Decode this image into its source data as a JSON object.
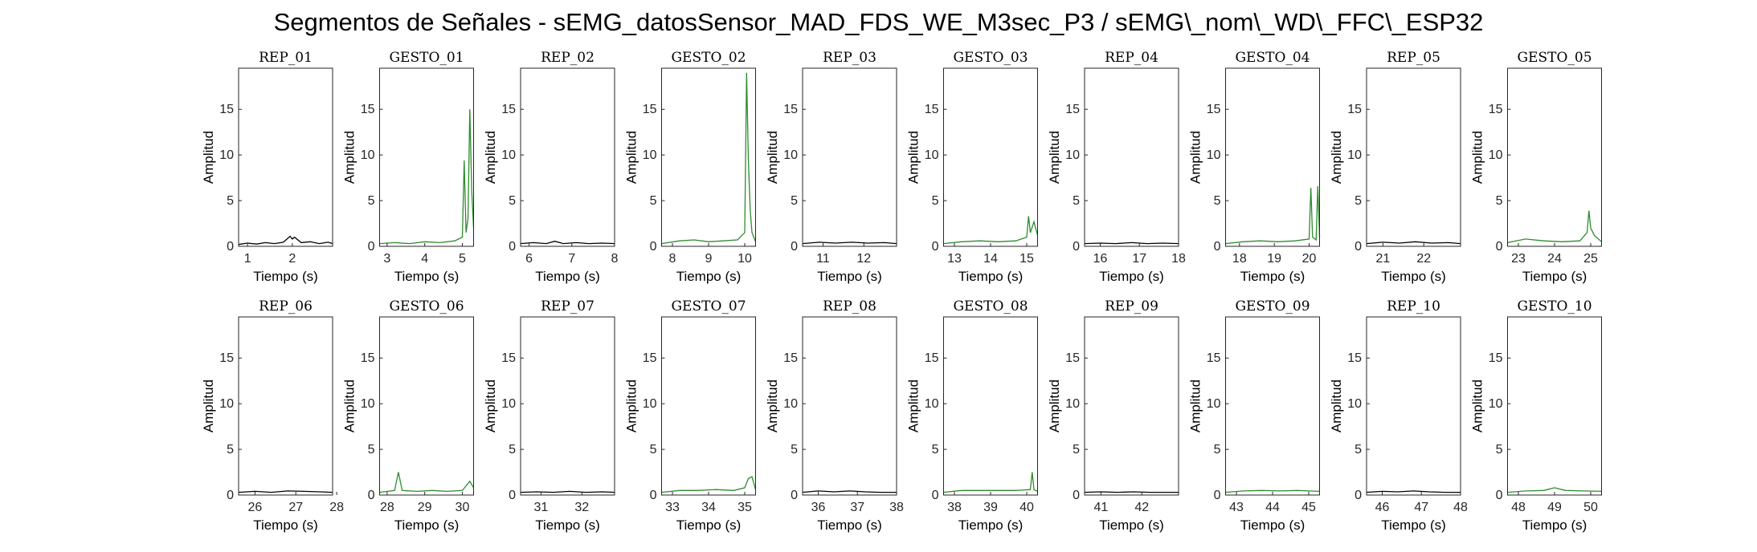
{
  "figure_title": "Segmentos de Señales - sEMG_datosSensor_MAD_FDS_WE_M3sec_P3 / sEMG\\_nom\\_WD\\_FFC\\_ESP32",
  "colors": {
    "rep": "#000000",
    "gesto": "#2e8b2e",
    "axis": "#262626"
  },
  "chart_data": [
    {
      "type": "line",
      "title": "REP_01",
      "xlabel": "Tiempo (s)",
      "ylabel": "Amplitud",
      "xticks": [
        1,
        2
      ],
      "yticks": [
        0,
        5,
        10,
        15
      ],
      "xlim": [
        0.8,
        2.9
      ],
      "ylim": [
        0,
        19.5
      ],
      "grid": false,
      "series": [
        {
          "color": "#000000",
          "x": [
            0.8,
            1.0,
            1.2,
            1.4,
            1.6,
            1.8,
            1.95,
            2.0,
            2.05,
            2.2,
            2.4,
            2.6,
            2.8,
            2.9
          ],
          "y": [
            0.2,
            0.35,
            0.25,
            0.4,
            0.3,
            0.45,
            1.1,
            0.8,
            1.0,
            0.4,
            0.5,
            0.3,
            0.45,
            0.3
          ]
        }
      ]
    },
    {
      "type": "line",
      "title": "GESTO_01",
      "xlabel": "Tiempo (s)",
      "ylabel": "Amplitud",
      "xticks": [
        3,
        4,
        5
      ],
      "yticks": [
        0,
        5,
        10,
        15
      ],
      "xlim": [
        2.8,
        5.3
      ],
      "ylim": [
        0,
        19.5
      ],
      "grid": false,
      "series": [
        {
          "color": "#2e8b2e",
          "x": [
            2.8,
            3.2,
            3.6,
            4.0,
            4.4,
            4.8,
            5.0,
            5.05,
            5.1,
            5.15,
            5.2,
            5.25,
            5.3
          ],
          "y": [
            0.3,
            0.4,
            0.3,
            0.5,
            0.4,
            0.6,
            1.0,
            9.4,
            1.5,
            3.0,
            15.0,
            6.0,
            2.0
          ]
        }
      ]
    },
    {
      "type": "line",
      "title": "REP_02",
      "xlabel": "Tiempo (s)",
      "ylabel": "Amplitud",
      "xticks": [
        6,
        7,
        8
      ],
      "yticks": [
        0,
        5,
        10,
        15
      ],
      "xlim": [
        5.8,
        8.0
      ],
      "ylim": [
        0,
        19.5
      ],
      "grid": false,
      "series": [
        {
          "color": "#000000",
          "x": [
            5.8,
            6.1,
            6.4,
            6.6,
            6.8,
            7.1,
            7.4,
            7.7,
            8.0
          ],
          "y": [
            0.3,
            0.4,
            0.3,
            0.55,
            0.3,
            0.4,
            0.3,
            0.35,
            0.3
          ]
        }
      ]
    },
    {
      "type": "line",
      "title": "GESTO_02",
      "xlabel": "Tiempo (s)",
      "ylabel": "Amplitud",
      "xticks": [
        8,
        9,
        10
      ],
      "yticks": [
        0,
        5,
        10,
        15
      ],
      "xlim": [
        7.7,
        10.3
      ],
      "ylim": [
        0,
        19.5
      ],
      "grid": false,
      "series": [
        {
          "color": "#2e8b2e",
          "x": [
            7.7,
            8.2,
            8.6,
            9.0,
            9.4,
            9.8,
            10.0,
            10.05,
            10.1,
            10.15,
            10.2,
            10.3
          ],
          "y": [
            0.3,
            0.6,
            0.7,
            0.5,
            0.6,
            0.7,
            1.5,
            19.0,
            9.5,
            4.0,
            1.5,
            0.5
          ]
        }
      ]
    },
    {
      "type": "line",
      "title": "REP_03",
      "xlabel": "Tiempo (s)",
      "ylabel": "Amplitud",
      "xticks": [
        11,
        12
      ],
      "yticks": [
        0,
        5,
        10,
        15
      ],
      "xlim": [
        10.5,
        12.8
      ],
      "ylim": [
        0,
        19.5
      ],
      "grid": false,
      "series": [
        {
          "color": "#000000",
          "x": [
            10.5,
            10.9,
            11.3,
            11.7,
            12.1,
            12.5,
            12.8
          ],
          "y": [
            0.3,
            0.45,
            0.35,
            0.45,
            0.35,
            0.4,
            0.3
          ]
        }
      ]
    },
    {
      "type": "line",
      "title": "GESTO_03",
      "xlabel": "Tiempo (s)",
      "ylabel": "Amplitud",
      "xticks": [
        13,
        14,
        15
      ],
      "yticks": [
        0,
        5,
        10,
        15
      ],
      "xlim": [
        12.7,
        15.3
      ],
      "ylim": [
        0,
        19.5
      ],
      "grid": false,
      "series": [
        {
          "color": "#2e8b2e",
          "x": [
            12.7,
            13.2,
            13.7,
            14.2,
            14.7,
            15.0,
            15.05,
            15.1,
            15.2,
            15.3
          ],
          "y": [
            0.3,
            0.5,
            0.6,
            0.5,
            0.6,
            1.0,
            3.3,
            1.5,
            2.7,
            1.2
          ]
        }
      ]
    },
    {
      "type": "line",
      "title": "REP_04",
      "xlabel": "Tiempo (s)",
      "ylabel": "Amplitud",
      "xticks": [
        16,
        17,
        18
      ],
      "yticks": [
        0,
        5,
        10,
        15
      ],
      "xlim": [
        15.6,
        18.0
      ],
      "ylim": [
        0,
        19.5
      ],
      "grid": false,
      "series": [
        {
          "color": "#000000",
          "x": [
            15.6,
            16.0,
            16.4,
            16.8,
            17.2,
            17.6,
            18.0
          ],
          "y": [
            0.3,
            0.35,
            0.3,
            0.4,
            0.3,
            0.35,
            0.3
          ]
        }
      ]
    },
    {
      "type": "line",
      "title": "GESTO_04",
      "xlabel": "Tiempo (s)",
      "ylabel": "Amplitud",
      "xticks": [
        18,
        19,
        20
      ],
      "yticks": [
        0,
        5,
        10,
        15
      ],
      "xlim": [
        17.6,
        20.3
      ],
      "ylim": [
        0,
        19.5
      ],
      "grid": false,
      "series": [
        {
          "color": "#2e8b2e",
          "x": [
            17.6,
            18.1,
            18.6,
            19.1,
            19.6,
            20.0,
            20.05,
            20.1,
            20.2,
            20.25,
            20.3
          ],
          "y": [
            0.3,
            0.5,
            0.6,
            0.5,
            0.6,
            0.8,
            6.4,
            1.0,
            0.7,
            6.6,
            1.0
          ]
        }
      ]
    },
    {
      "type": "line",
      "title": "REP_05",
      "xlabel": "Tiempo (s)",
      "ylabel": "Amplitud",
      "xticks": [
        21,
        22
      ],
      "yticks": [
        0,
        5,
        10,
        15
      ],
      "xlim": [
        20.6,
        22.9
      ],
      "ylim": [
        0,
        19.5
      ],
      "grid": false,
      "series": [
        {
          "color": "#000000",
          "x": [
            20.6,
            21.0,
            21.4,
            21.8,
            22.2,
            22.6,
            22.9
          ],
          "y": [
            0.3,
            0.45,
            0.35,
            0.5,
            0.35,
            0.4,
            0.3
          ]
        }
      ]
    },
    {
      "type": "line",
      "title": "GESTO_05",
      "xlabel": "Tiempo (s)",
      "ylabel": "Amplitud",
      "xticks": [
        23,
        24,
        25
      ],
      "yticks": [
        0,
        5,
        10,
        15
      ],
      "xlim": [
        22.7,
        25.3
      ],
      "ylim": [
        0,
        19.5
      ],
      "grid": false,
      "series": [
        {
          "color": "#2e8b2e",
          "x": [
            22.7,
            23.2,
            23.7,
            24.2,
            24.7,
            24.9,
            24.95,
            25.0,
            25.1,
            25.3
          ],
          "y": [
            0.4,
            0.8,
            0.6,
            0.5,
            0.6,
            1.5,
            3.9,
            2.0,
            1.2,
            0.5
          ]
        }
      ]
    },
    {
      "type": "line",
      "title": "REP_06",
      "xlabel": "Tiempo (s)",
      "ylabel": "Amplitud",
      "xticks": [
        26,
        27,
        28
      ],
      "yticks": [
        0,
        5,
        10,
        15
      ],
      "xlim": [
        25.6,
        27.9
      ],
      "ylim": [
        0,
        19.5
      ],
      "grid": false,
      "series": [
        {
          "color": "#000000",
          "x": [
            25.6,
            26.0,
            26.4,
            26.8,
            27.2,
            27.6,
            27.9
          ],
          "y": [
            0.3,
            0.4,
            0.3,
            0.45,
            0.4,
            0.35,
            0.3
          ]
        }
      ]
    },
    {
      "type": "line",
      "title": "GESTO_06",
      "xlabel": "Tiempo (s)",
      "ylabel": "Amplitud",
      "xticks": [
        28,
        29,
        30
      ],
      "yticks": [
        0,
        5,
        10,
        15
      ],
      "xlim": [
        27.8,
        30.3
      ],
      "ylim": [
        0,
        19.5
      ],
      "grid": false,
      "series": [
        {
          "color": "#2e8b2e",
          "x": [
            27.8,
            28.2,
            28.3,
            28.4,
            28.8,
            29.2,
            29.6,
            30.0,
            30.2,
            30.3
          ],
          "y": [
            0.3,
            0.5,
            2.5,
            0.5,
            0.4,
            0.5,
            0.4,
            0.5,
            1.5,
            0.8
          ]
        }
      ]
    },
    {
      "type": "line",
      "title": "REP_07",
      "xlabel": "Tiempo (s)",
      "ylabel": "Amplitud",
      "xticks": [
        31,
        32
      ],
      "yticks": [
        0,
        5,
        10,
        15
      ],
      "xlim": [
        30.5,
        32.8
      ],
      "ylim": [
        0,
        19.5
      ],
      "grid": false,
      "series": [
        {
          "color": "#000000",
          "x": [
            30.5,
            30.9,
            31.3,
            31.7,
            32.1,
            32.5,
            32.8
          ],
          "y": [
            0.3,
            0.35,
            0.3,
            0.4,
            0.3,
            0.35,
            0.3
          ]
        }
      ]
    },
    {
      "type": "line",
      "title": "GESTO_07",
      "xlabel": "Tiempo (s)",
      "ylabel": "Amplitud",
      "xticks": [
        33,
        34,
        35
      ],
      "yticks": [
        0,
        5,
        10,
        15
      ],
      "xlim": [
        32.7,
        35.3
      ],
      "ylim": [
        0,
        19.5
      ],
      "grid": false,
      "series": [
        {
          "color": "#2e8b2e",
          "x": [
            32.7,
            33.2,
            33.7,
            34.2,
            34.7,
            35.0,
            35.1,
            35.2,
            35.3
          ],
          "y": [
            0.3,
            0.5,
            0.5,
            0.6,
            0.5,
            0.8,
            1.8,
            2.0,
            0.6
          ]
        }
      ]
    },
    {
      "type": "line",
      "title": "REP_08",
      "xlabel": "Tiempo (s)",
      "ylabel": "Amplitud",
      "xticks": [
        36,
        37,
        38
      ],
      "yticks": [
        0,
        5,
        10,
        15
      ],
      "xlim": [
        35.6,
        38.0
      ],
      "ylim": [
        0,
        19.5
      ],
      "grid": false,
      "series": [
        {
          "color": "#000000",
          "x": [
            35.6,
            36.0,
            36.4,
            36.8,
            37.2,
            37.6,
            38.0
          ],
          "y": [
            0.3,
            0.45,
            0.35,
            0.45,
            0.35,
            0.3,
            0.3
          ]
        }
      ]
    },
    {
      "type": "line",
      "title": "GESTO_08",
      "xlabel": "Tiempo (s)",
      "ylabel": "Amplitud",
      "xticks": [
        38,
        39,
        40
      ],
      "yticks": [
        0,
        5,
        10,
        15
      ],
      "xlim": [
        37.7,
        40.3
      ],
      "ylim": [
        0,
        19.5
      ],
      "grid": false,
      "series": [
        {
          "color": "#2e8b2e",
          "x": [
            37.7,
            38.2,
            38.7,
            39.2,
            39.7,
            40.1,
            40.15,
            40.2,
            40.3
          ],
          "y": [
            0.3,
            0.5,
            0.5,
            0.5,
            0.5,
            0.6,
            2.5,
            0.6,
            0.4
          ]
        }
      ]
    },
    {
      "type": "line",
      "title": "REP_09",
      "xlabel": "Tiempo (s)",
      "ylabel": "Amplitud",
      "xticks": [
        41,
        42
      ],
      "yticks": [
        0,
        5,
        10,
        15
      ],
      "xlim": [
        40.6,
        42.9
      ],
      "ylim": [
        0,
        19.5
      ],
      "grid": false,
      "series": [
        {
          "color": "#000000",
          "x": [
            40.6,
            41.0,
            41.4,
            41.8,
            42.2,
            42.6,
            42.9
          ],
          "y": [
            0.3,
            0.35,
            0.3,
            0.35,
            0.3,
            0.3,
            0.3
          ]
        }
      ]
    },
    {
      "type": "line",
      "title": "GESTO_09",
      "xlabel": "Tiempo (s)",
      "ylabel": "Amplitud",
      "xticks": [
        43,
        44,
        45
      ],
      "yticks": [
        0,
        5,
        10,
        15
      ],
      "xlim": [
        42.7,
        45.3
      ],
      "ylim": [
        0,
        19.5
      ],
      "grid": false,
      "series": [
        {
          "color": "#2e8b2e",
          "x": [
            42.7,
            43.2,
            43.7,
            44.2,
            44.7,
            45.0,
            45.3
          ],
          "y": [
            0.3,
            0.45,
            0.5,
            0.45,
            0.5,
            0.45,
            0.4
          ]
        }
      ]
    },
    {
      "type": "line",
      "title": "REP_10",
      "xlabel": "Tiempo (s)",
      "ylabel": "Amplitud",
      "xticks": [
        46,
        47,
        48
      ],
      "yticks": [
        0,
        5,
        10,
        15
      ],
      "xlim": [
        45.6,
        48.0
      ],
      "ylim": [
        0,
        19.5
      ],
      "grid": false,
      "series": [
        {
          "color": "#000000",
          "x": [
            45.6,
            46.0,
            46.4,
            46.8,
            47.2,
            47.6,
            48.0
          ],
          "y": [
            0.3,
            0.4,
            0.35,
            0.45,
            0.35,
            0.3,
            0.3
          ]
        }
      ]
    },
    {
      "type": "line",
      "title": "GESTO_10",
      "xlabel": "Tiempo (s)",
      "ylabel": "Amplitud",
      "xticks": [
        48,
        49,
        50
      ],
      "yticks": [
        0,
        5,
        10,
        15
      ],
      "xlim": [
        47.7,
        50.3
      ],
      "ylim": [
        0,
        19.5
      ],
      "grid": false,
      "series": [
        {
          "color": "#2e8b2e",
          "x": [
            47.7,
            48.2,
            48.7,
            49.0,
            49.3,
            49.8,
            50.3
          ],
          "y": [
            0.3,
            0.45,
            0.5,
            0.8,
            0.5,
            0.45,
            0.4
          ]
        }
      ]
    }
  ]
}
